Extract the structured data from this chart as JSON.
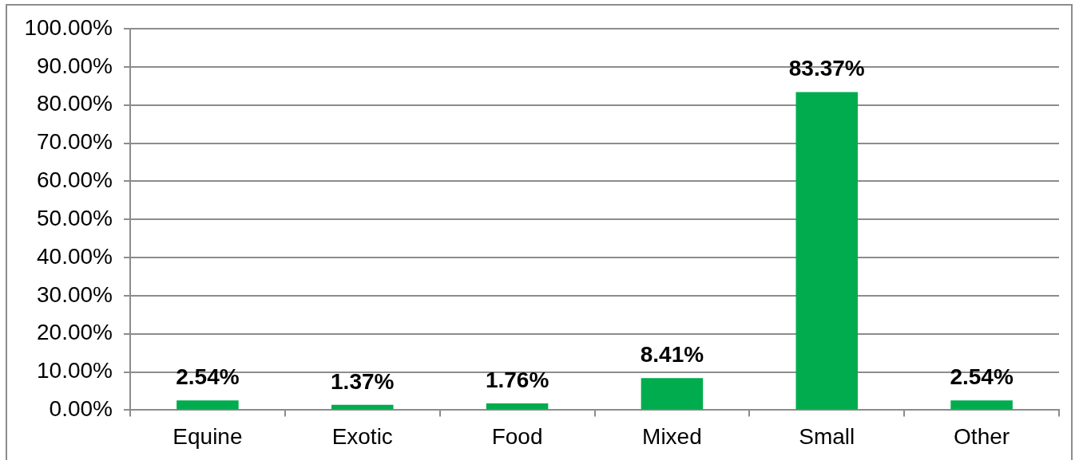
{
  "chart_data": {
    "type": "bar",
    "categories": [
      "Equine",
      "Exotic",
      "Food",
      "Mixed",
      "Small",
      "Other"
    ],
    "values": [
      2.54,
      1.37,
      1.76,
      8.41,
      83.37,
      2.54
    ],
    "value_labels": [
      "2.54%",
      "1.37%",
      "1.76%",
      "8.41%",
      "83.37%",
      "2.54%"
    ],
    "color": "#00ac4e",
    "ylim": [
      0,
      100
    ],
    "yticks": [
      {
        "value": 0,
        "label": "0.00%"
      },
      {
        "value": 10,
        "label": "10.00%"
      },
      {
        "value": 20,
        "label": "20.00%"
      },
      {
        "value": 30,
        "label": "30.00%"
      },
      {
        "value": 40,
        "label": "40.00%"
      },
      {
        "value": 50,
        "label": "50.00%"
      },
      {
        "value": 60,
        "label": "60.00%"
      },
      {
        "value": 70,
        "label": "70.00%"
      },
      {
        "value": 80,
        "label": "80.00%"
      },
      {
        "value": 90,
        "label": "90.00%"
      },
      {
        "value": 100,
        "label": "100.00%"
      }
    ],
    "grid": "y",
    "legend": false
  }
}
